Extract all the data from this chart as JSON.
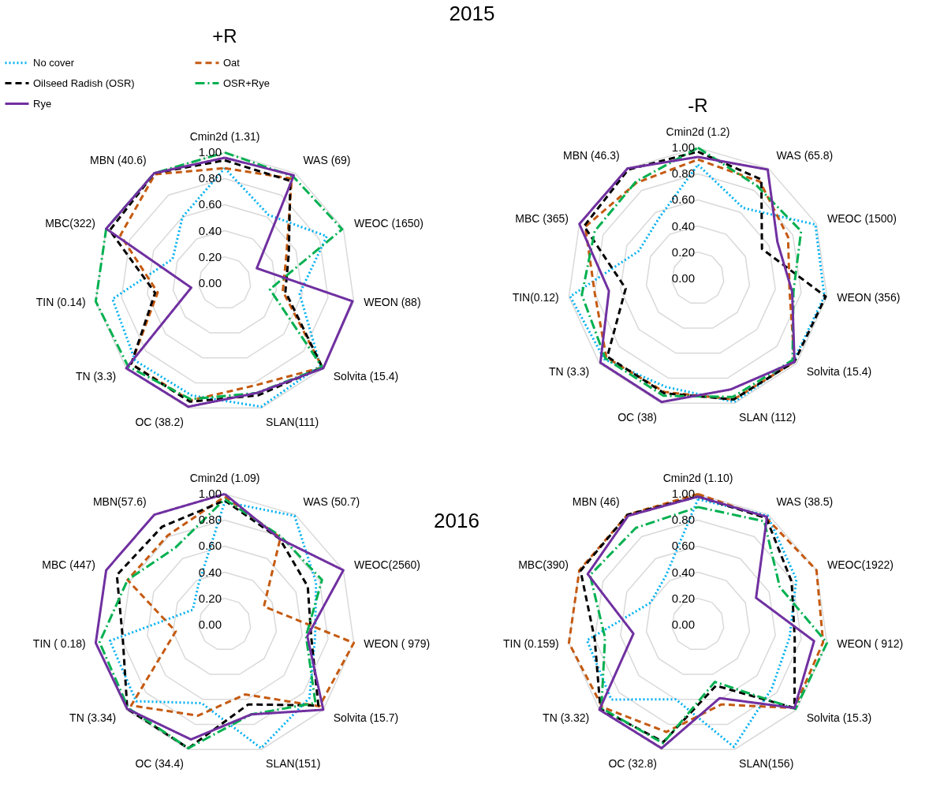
{
  "chart_data": [
    {
      "type": "radar",
      "title": "+R",
      "annotations": [
        "2015"
      ],
      "categories": [
        "Cmin2d (1.31)",
        "WAS (69)",
        "WEOC (1650)",
        "WEON (88)",
        "Solvita (15.4)",
        "SLAN(111)",
        "OC (38.2)",
        "TN (3.3)",
        "TIN (0.14)",
        "MBC(322)",
        "MBN (40.6)"
      ],
      "ylim": [
        0,
        1
      ],
      "yticks": [
        {
          "value": 0,
          "label": "0.00"
        },
        {
          "value": 0.2,
          "label": "0.20"
        },
        {
          "value": 0.4,
          "label": "0.40"
        },
        {
          "value": 0.6,
          "label": "0.60"
        },
        {
          "value": 0.8,
          "label": "0.80"
        },
        {
          "value": 1,
          "label": "1.00"
        }
      ],
      "grid": true,
      "legend": "top left",
      "series": [
        {
          "name": "No cover",
          "color": "#00b0f0",
          "line_style": "dotted",
          "values": [
            0.88,
            0.62,
            0.86,
            0.58,
            0.97,
            0.99,
            0.9,
            0.91,
            0.87,
            0.44,
            0.6
          ]
        },
        {
          "name": "Oat",
          "color": "#c55a11",
          "line_style": "dashed",
          "values": [
            0.88,
            0.95,
            0.52,
            0.45,
            0.99,
            0.82,
            0.94,
            0.95,
            0.52,
            0.88,
            0.99
          ]
        },
        {
          "name": "Oilseed Radish (OSR)",
          "color": "#000000",
          "line_style": "dashed",
          "values": [
            0.94,
            0.93,
            0.54,
            0.47,
            0.99,
            0.9,
            0.95,
            0.95,
            0.54,
            0.97,
            1.0
          ]
        },
        {
          "name": "OSR+Rye",
          "color": "#00b050",
          "line_style": "dashdot",
          "values": [
            1.0,
            0.97,
            0.99,
            0.35,
            0.99,
            0.88,
            0.93,
            0.98,
            1.0,
            1.0,
            1.0
          ]
        },
        {
          "name": "Rye",
          "color": "#7030a0",
          "line_style": "solid",
          "values": [
            0.96,
            0.98,
            0.27,
            0.99,
            1.0,
            0.88,
            0.99,
            1.0,
            0.26,
            1.0,
            1.0
          ]
        }
      ]
    },
    {
      "type": "radar",
      "title": "-R",
      "categories": [
        "Cmin2d (1.2)",
        "WAS (65.8)",
        "WEOC (1500)",
        "WEON (356)",
        "Solvita (15.4)",
        "SLAN (112)",
        "OC (38)",
        "TN (3.3)",
        "TIN(0.12)",
        "MBC (365)",
        "MBN (46.3)"
      ],
      "ylim": [
        0,
        1
      ],
      "yticks": [
        {
          "value": 0,
          "label": "0.00"
        },
        {
          "value": 0.2,
          "label": "0.20"
        },
        {
          "value": 0.4,
          "label": "0.40"
        },
        {
          "value": 0.6,
          "label": "0.60"
        },
        {
          "value": 0.8,
          "label": "0.80"
        },
        {
          "value": 1,
          "label": "1.00"
        }
      ],
      "grid": true,
      "series": [
        {
          "color": "#00b0f0",
          "line_style": "dotted",
          "values": [
            0.87,
            0.64,
            0.99,
            0.98,
            0.97,
            0.99,
            0.87,
            0.95,
            0.99,
            0.5,
            0.55
          ]
        },
        {
          "color": "#c55a11",
          "line_style": "dashed",
          "values": [
            0.91,
            0.88,
            0.76,
            0.71,
            0.98,
            0.97,
            0.91,
            0.93,
            0.8,
            0.95,
            0.87
          ]
        },
        {
          "color": "#000000",
          "line_style": "dashed",
          "values": [
            0.97,
            0.9,
            0.54,
            0.99,
            0.98,
            0.97,
            0.92,
            0.92,
            0.56,
            0.96,
            0.99
          ]
        },
        {
          "color": "#00b050",
          "line_style": "dashdot",
          "values": [
            1.0,
            0.84,
            0.87,
            0.74,
            0.96,
            0.95,
            0.94,
            0.94,
            0.9,
            0.87,
            0.88
          ]
        },
        {
          "color": "#7030a0",
          "line_style": "solid",
          "values": [
            0.93,
            0.99,
            0.67,
            0.73,
            0.98,
            0.89,
            0.99,
            0.99,
            0.69,
            1.0,
            1.0
          ]
        }
      ]
    },
    {
      "type": "radar",
      "categories": [
        "Cmin2d (1.09)",
        "WAS (50.7)",
        "WEOC(2560)",
        "WEON ( 979)",
        "Solvita (15.7)",
        "SLAN(151)",
        "OC (34.4)",
        "TN (3.34)",
        "TIN ( 0.18)",
        "MBC (447)",
        "MBN(57.6)"
      ],
      "ylim": [
        0,
        1
      ],
      "yticks": [
        {
          "value": 0,
          "label": "0.00"
        },
        {
          "value": 0.2,
          "label": "0.20"
        },
        {
          "value": 0.4,
          "label": "0.40"
        },
        {
          "value": 0.6,
          "label": "0.60"
        },
        {
          "value": 0.8,
          "label": "0.80"
        },
        {
          "value": 1,
          "label": "1.00"
        }
      ],
      "grid": true,
      "series": [
        {
          "color": "#00b0f0",
          "line_style": "dotted",
          "values": [
            0.94,
            0.99,
            0.77,
            0.7,
            0.86,
            0.99,
            0.63,
            0.9,
            0.89,
            0.27,
            0.37
          ]
        },
        {
          "color": "#c55a11",
          "line_style": "dashed",
          "values": [
            0.98,
            0.79,
            0.33,
            1.0,
            0.96,
            0.56,
            0.73,
            0.95,
            0.38,
            0.82,
            0.81
          ]
        },
        {
          "color": "#000000",
          "line_style": "dashed",
          "values": [
            0.95,
            0.78,
            0.7,
            0.67,
            0.95,
            0.64,
            0.99,
            0.99,
            0.79,
            0.91,
            0.89
          ]
        },
        {
          "color": "#00b050",
          "line_style": "dashdot",
          "values": [
            0.96,
            0.8,
            0.82,
            0.63,
            0.92,
            0.72,
            0.99,
            0.98,
            0.97,
            0.82,
            0.7
          ]
        },
        {
          "color": "#7030a0",
          "line_style": "solid",
          "values": [
            1.0,
            0.78,
            1.0,
            0.64,
            1.0,
            0.72,
            0.92,
            0.99,
            1.0,
            1.0,
            1.0
          ]
        }
      ]
    },
    {
      "type": "radar",
      "annotations": [
        "2016"
      ],
      "categories": [
        "Cmin2d (1.10)",
        "WAS (38.5)",
        "WEOC(1922)",
        "WEON ( 912)",
        "Solvita (15.3)",
        "SLAN(156)",
        "OC (32.8)",
        "TN (3.32)",
        "TIN (0.159)",
        "MBC(390)",
        "MBN (46)"
      ],
      "ylim": [
        0,
        1
      ],
      "yticks": [
        {
          "value": 0,
          "label": "0.00"
        },
        {
          "value": 0.2,
          "label": "0.20"
        },
        {
          "value": 0.4,
          "label": "0.40"
        },
        {
          "value": 0.6,
          "label": "0.60"
        },
        {
          "value": 0.8,
          "label": "0.80"
        },
        {
          "value": 1,
          "label": "1.00"
        }
      ],
      "grid": true,
      "series": [
        {
          "color": "#00b0f0",
          "line_style": "dotted",
          "values": [
            0.96,
            0.99,
            0.83,
            0.71,
            0.75,
            0.98,
            0.6,
            0.88,
            0.86,
            0.4,
            0.45
          ]
        },
        {
          "color": "#c55a11",
          "line_style": "dashed",
          "values": [
            1.0,
            0.97,
            1.0,
            0.97,
            0.98,
            0.64,
            0.86,
            0.97,
            1.0,
            1.0,
            1.0
          ]
        },
        {
          "color": "#000000",
          "line_style": "dashed",
          "values": [
            0.98,
            0.97,
            0.79,
            0.75,
            0.98,
            0.49,
            0.94,
            0.99,
            0.8,
            0.99,
            1.0
          ]
        },
        {
          "color": "#00b050",
          "line_style": "dashdot",
          "values": [
            0.9,
            0.94,
            0.69,
            1.0,
            0.99,
            0.46,
            0.95,
            0.98,
            0.72,
            0.91,
            0.88
          ]
        },
        {
          "color": "#7030a0",
          "line_style": "solid",
          "values": [
            0.98,
            0.98,
            0.49,
            0.9,
            0.98,
            0.59,
            0.99,
            1.0,
            0.5,
            0.93,
            0.99
          ]
        }
      ]
    }
  ]
}
